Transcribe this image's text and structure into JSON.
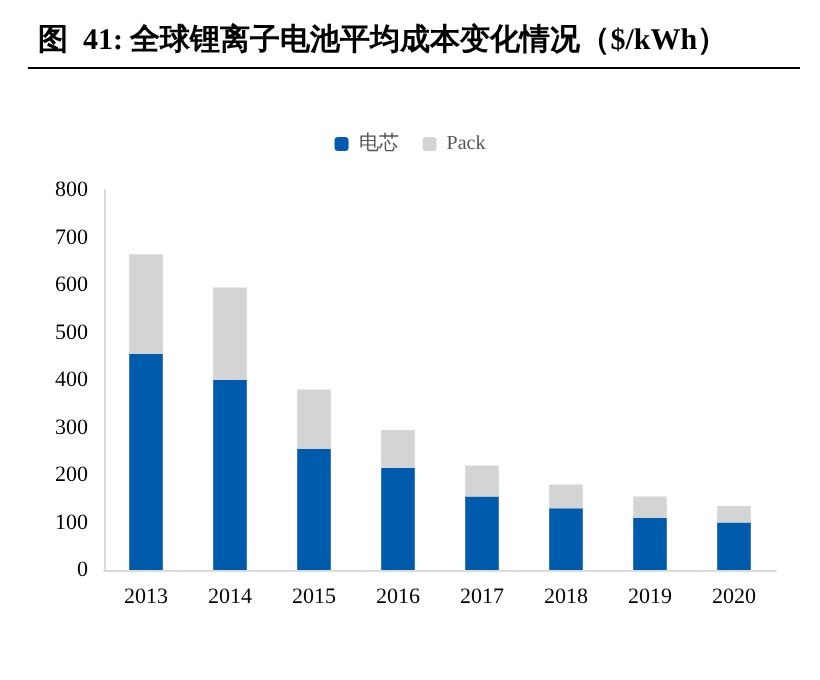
{
  "chart_data": {
    "type": "bar",
    "title": "图  41: 全球锂离子电池平均成本变化情况（$/kWh）",
    "categories": [
      "2013",
      "2014",
      "2015",
      "2016",
      "2017",
      "2018",
      "2019",
      "2020"
    ],
    "stacked": true,
    "legend": "top",
    "grid": false,
    "series": [
      {
        "name": "电芯",
        "color": "#005bac",
        "values": [
          455,
          400,
          255,
          215,
          155,
          130,
          110,
          100
        ]
      },
      {
        "name": "Pack",
        "color": "#d4d4d4",
        "values": [
          210,
          195,
          125,
          80,
          65,
          50,
          45,
          35
        ]
      }
    ],
    "ylim": [
      0,
      800
    ],
    "yticks": [
      0,
      100,
      200,
      300,
      400,
      500,
      600,
      700,
      800
    ]
  }
}
